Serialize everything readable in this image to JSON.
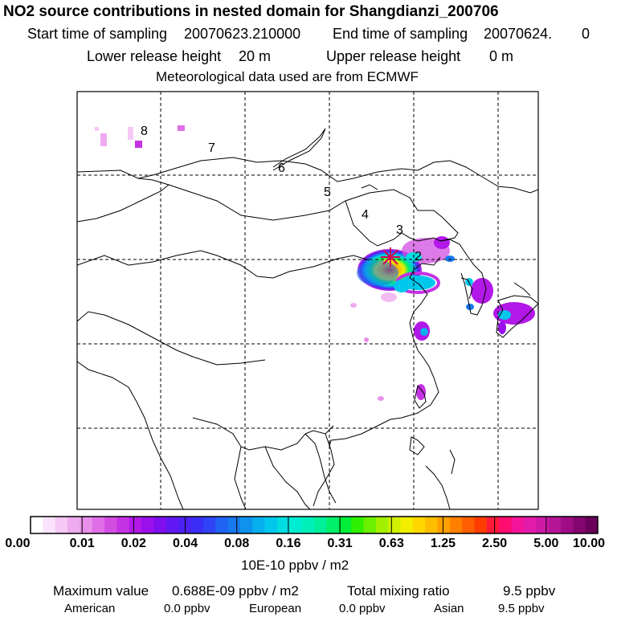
{
  "header": {
    "title": "NO2 source contributions in nested domain for Shangdianzi_200706",
    "start_label": "Start time of sampling",
    "start_value": "20070623.210000",
    "end_label": "End time of sampling",
    "end_value": "20070624.",
    "end_extra": "0",
    "lower_label": "Lower release height",
    "lower_value": "20 m",
    "upper_label": "Upper release height",
    "upper_value": "0 m",
    "met_line": "Meteorological data used are from ECMWF"
  },
  "map": {
    "markers": [
      "8",
      "7",
      "6",
      "5",
      "4",
      "3",
      "2"
    ],
    "station_color": "#d4005a"
  },
  "colorbar": {
    "ticks": [
      "0.00",
      "0.01",
      "0.02",
      "0.04",
      "0.08",
      "0.16",
      "0.31",
      "0.63",
      "1.25",
      "2.50",
      "5.00",
      "10.00"
    ],
    "colors": [
      "#ffffff",
      "#fbe4fb",
      "#f5c8f5",
      "#efabef",
      "#e890ea",
      "#df6ee6",
      "#d24de2",
      "#c532e4",
      "#b218e8",
      "#9a10ec",
      "#7f0fef",
      "#6118f2",
      "#4d20f4",
      "#3a2ef6",
      "#2f44f6",
      "#2063f2",
      "#1679ee",
      "#0e92ee",
      "#06b0ee",
      "#00c8ec",
      "#00dde2",
      "#00ecd3",
      "#00f0bb",
      "#00ef9b",
      "#00ef68",
      "#00ed38",
      "#2ef000",
      "#6af000",
      "#a3f000",
      "#cff000",
      "#f2ee00",
      "#ffd700",
      "#ffbd00",
      "#ffa000",
      "#ff8000",
      "#ff5e00",
      "#ff3c00",
      "#ff1a3a",
      "#ff0c70",
      "#f5139a",
      "#e21bab",
      "#cd1aa6",
      "#b61497",
      "#9e0d85",
      "#850670",
      "#6a0059"
    ],
    "unit": "10E-10 ppbv / m2"
  },
  "footer": {
    "max_label": "Maximum value",
    "max_value": "0.688E-09 ppbv / m2",
    "total_label": "Total mixing ratio",
    "total_value": "9.5 ppbv",
    "regions": [
      {
        "name": "American",
        "value": "0.0 ppbv"
      },
      {
        "name": "European",
        "value": "0.0 ppbv"
      },
      {
        "name": "Asian",
        "value": "9.5 ppbv"
      }
    ]
  }
}
